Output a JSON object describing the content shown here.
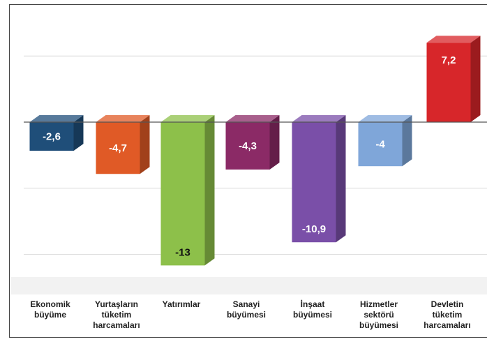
{
  "chart_data": {
    "type": "bar",
    "style": "3d-columns",
    "categories": [
      [
        "Ekonomik",
        "büyüme"
      ],
      [
        "Yurtaşların",
        "tüketim",
        "harcamaları"
      ],
      [
        "Yatırımlar"
      ],
      [
        "Sanayi",
        "büyümesi"
      ],
      [
        "İnşaat",
        "büyümesi"
      ],
      [
        "Hizmetler",
        "sektörü",
        "büyümesi"
      ],
      [
        "Devletin",
        "tüketim",
        "harcamaları"
      ]
    ],
    "values": [
      -2.6,
      -4.7,
      -13,
      -4.3,
      -10.9,
      -4,
      7.2
    ],
    "value_labels": [
      "-2,6",
      "-4,7",
      "-13",
      "-4,3",
      "-10,9",
      "-4",
      "7,2"
    ],
    "colors": [
      "#1f4e79",
      "#e05a26",
      "#8dc04a",
      "#8b2a66",
      "#7a4fa8",
      "#7fa6d9",
      "#d7262a"
    ],
    "label_colors": [
      "#ffffff",
      "#ffffff",
      "#111111",
      "#ffffff",
      "#ffffff",
      "#ffffff",
      "#ffffff"
    ],
    "ylim": [
      -16.5,
      12
    ],
    "grid": true,
    "gridlines": [
      -12,
      -6,
      6,
      12
    ]
  }
}
